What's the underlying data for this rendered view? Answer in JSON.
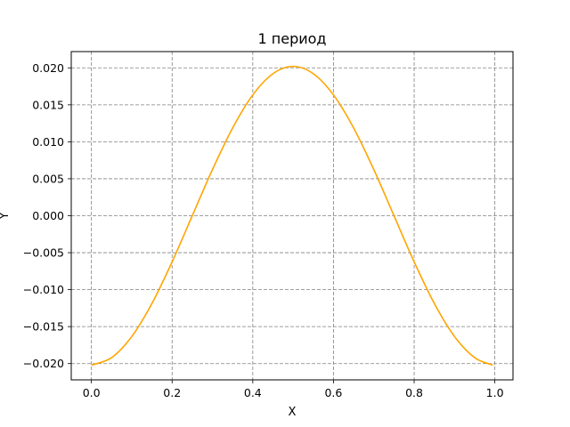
{
  "chart_data": {
    "type": "line",
    "title": "1 период",
    "xlabel": "X",
    "ylabel": "Y",
    "xlim": [
      -0.05,
      1.045
    ],
    "ylim": [
      -0.0222,
      0.0222
    ],
    "xticks": [
      0.0,
      0.2,
      0.4,
      0.6,
      0.8,
      1.0
    ],
    "xtick_labels": [
      "0.0",
      "0.2",
      "0.4",
      "0.6",
      "0.8",
      "1.0"
    ],
    "yticks": [
      -0.02,
      -0.015,
      -0.01,
      -0.005,
      0.0,
      0.005,
      0.01,
      0.015,
      0.02
    ],
    "ytick_labels": [
      "−0.020",
      "−0.015",
      "−0.010",
      "−0.005",
      "0.000",
      "0.005",
      "0.010",
      "0.015",
      "0.020"
    ],
    "grid": true,
    "grid_style": "dashed",
    "series": [
      {
        "color": "#FFA500",
        "x": [
          0.0,
          0.05,
          0.1,
          0.15,
          0.2,
          0.25,
          0.3,
          0.35,
          0.4,
          0.45,
          0.5,
          0.55,
          0.6,
          0.65,
          0.7,
          0.75,
          0.8,
          0.85,
          0.9,
          0.95,
          0.995
        ],
        "y": [
          -0.0202,
          -0.0192,
          -0.01634,
          -0.01187,
          -0.00624,
          0.0,
          0.00624,
          0.01187,
          0.01634,
          0.01921,
          0.0202,
          0.01921,
          0.01634,
          0.01187,
          0.00624,
          0.0,
          -0.00624,
          -0.01187,
          -0.01634,
          -0.0192,
          -0.0202
        ]
      }
    ]
  }
}
